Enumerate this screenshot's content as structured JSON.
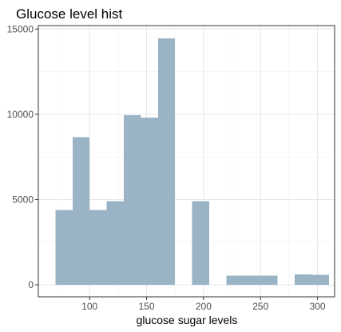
{
  "chart_data": {
    "type": "bar",
    "title": "Glucose level hist",
    "xlabel": "glucose sugar levels",
    "ylabel": "",
    "xlim": [
      55,
      315
    ],
    "ylim": [
      -700,
      15200
    ],
    "grid": true,
    "bar_color": "#9ab4c6",
    "bins": [
      {
        "x0": 70,
        "x1": 85,
        "value": 4400
      },
      {
        "x0": 85,
        "x1": 100,
        "value": 8650
      },
      {
        "x0": 100,
        "x1": 115,
        "value": 4400
      },
      {
        "x0": 115,
        "x1": 130,
        "value": 4900
      },
      {
        "x0": 130,
        "x1": 145,
        "value": 9950
      },
      {
        "x0": 145,
        "x1": 160,
        "value": 9800
      },
      {
        "x0": 160,
        "x1": 175,
        "value": 14450
      },
      {
        "x0": 175,
        "x1": 190,
        "value": 0
      },
      {
        "x0": 190,
        "x1": 205,
        "value": 4900
      },
      {
        "x0": 205,
        "x1": 220,
        "value": 0
      },
      {
        "x0": 220,
        "x1": 235,
        "value": 550
      },
      {
        "x0": 235,
        "x1": 250,
        "value": 550
      },
      {
        "x0": 250,
        "x1": 265,
        "value": 550
      },
      {
        "x0": 265,
        "x1": 280,
        "value": 0
      },
      {
        "x0": 280,
        "x1": 295,
        "value": 620
      },
      {
        "x0": 295,
        "x1": 310,
        "value": 580
      }
    ],
    "x_ticks": [
      {
        "value": 100,
        "label": "100"
      },
      {
        "value": 150,
        "label": "150"
      },
      {
        "value": 200,
        "label": "200"
      },
      {
        "value": 250,
        "label": "250"
      },
      {
        "value": 300,
        "label": "300"
      }
    ],
    "y_ticks": [
      {
        "value": 0,
        "label": "0"
      },
      {
        "value": 5000,
        "label": "5000"
      },
      {
        "value": 10000,
        "label": "10000"
      },
      {
        "value": 15000,
        "label": "15000"
      }
    ]
  }
}
